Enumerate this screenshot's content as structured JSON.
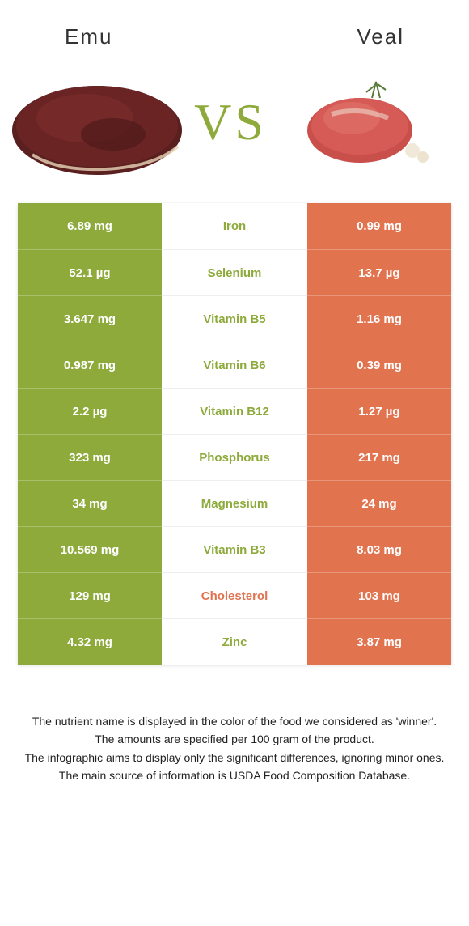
{
  "header": {
    "left_title": "Emu",
    "right_title": "Veal",
    "vs_text": "VS"
  },
  "colors": {
    "left": "#8daa3b",
    "right": "#e1734f",
    "background": "#ffffff",
    "text": "#333333"
  },
  "table": {
    "rows": [
      {
        "nutrient": "Iron",
        "left": "6.89 mg",
        "right": "0.99 mg",
        "winner": "left"
      },
      {
        "nutrient": "Selenium",
        "left": "52.1 µg",
        "right": "13.7 µg",
        "winner": "left"
      },
      {
        "nutrient": "Vitamin B5",
        "left": "3.647 mg",
        "right": "1.16 mg",
        "winner": "left"
      },
      {
        "nutrient": "Vitamin B6",
        "left": "0.987 mg",
        "right": "0.39 mg",
        "winner": "left"
      },
      {
        "nutrient": "Vitamin B12",
        "left": "2.2 µg",
        "right": "1.27 µg",
        "winner": "left"
      },
      {
        "nutrient": "Phosphorus",
        "left": "323 mg",
        "right": "217 mg",
        "winner": "left"
      },
      {
        "nutrient": "Magnesium",
        "left": "34 mg",
        "right": "24 mg",
        "winner": "left"
      },
      {
        "nutrient": "Vitamin B3",
        "left": "10.569 mg",
        "right": "8.03 mg",
        "winner": "left"
      },
      {
        "nutrient": "Cholesterol",
        "left": "129 mg",
        "right": "103 mg",
        "winner": "right"
      },
      {
        "nutrient": "Zinc",
        "left": "4.32 mg",
        "right": "3.87 mg",
        "winner": "left"
      }
    ]
  },
  "footnotes": {
    "line1": "The nutrient name is displayed in the color of the food we considered as 'winner'.",
    "line2": "The amounts are specified per 100 gram of the product.",
    "line3": "The infographic aims to display only the significant differences, ignoring minor ones.",
    "line4": "The main source of information is USDA Food Composition Database."
  }
}
